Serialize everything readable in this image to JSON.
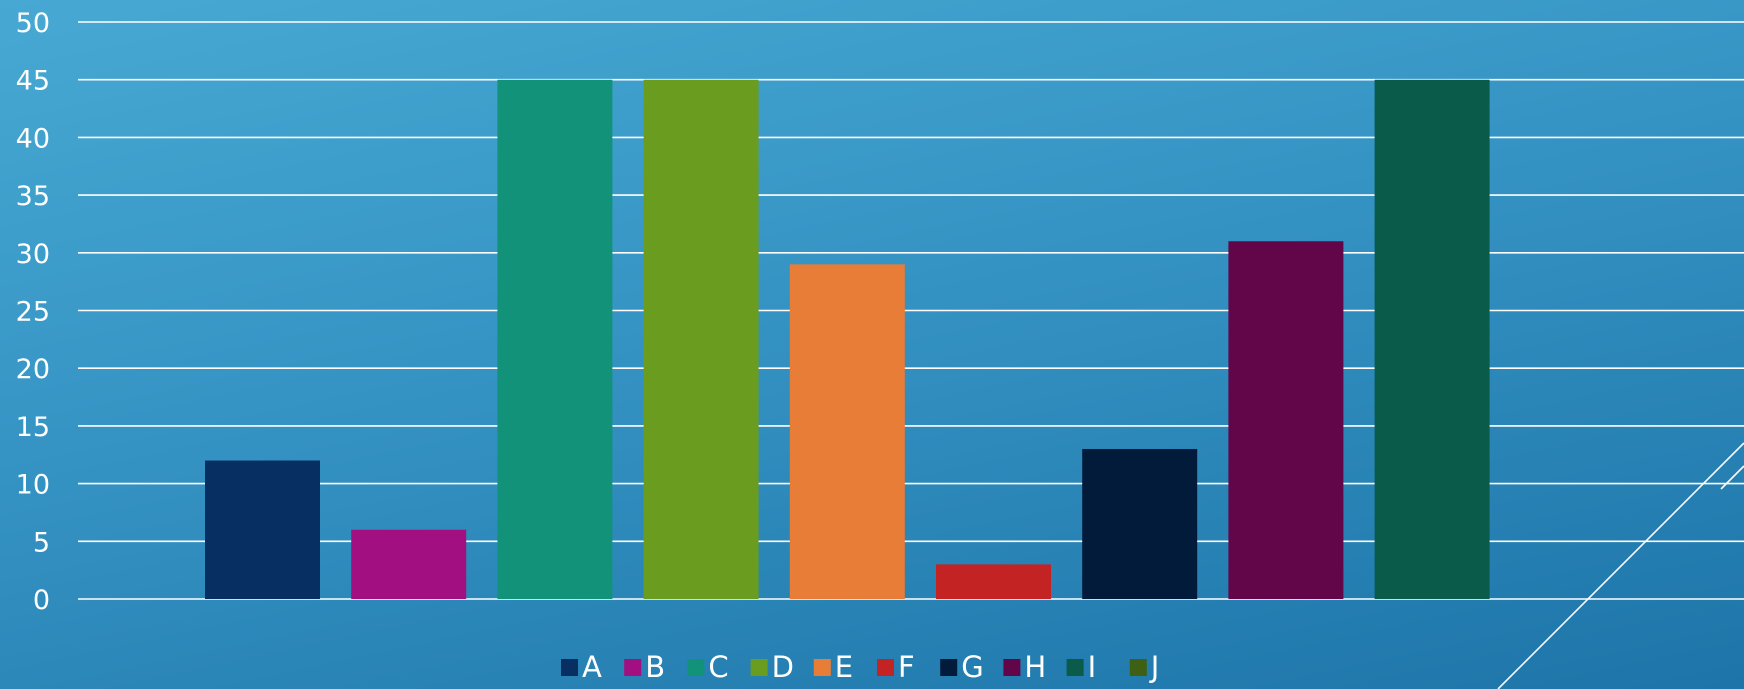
{
  "chart_data": {
    "type": "bar",
    "categories": [
      "A",
      "B",
      "C",
      "D",
      "E",
      "F",
      "G",
      "H",
      "I",
      "J"
    ],
    "values": [
      12,
      6,
      45,
      45,
      29,
      3,
      13,
      31,
      45,
      0
    ],
    "colors": [
      "#072f62",
      "#a20f80",
      "#13927a",
      "#6a9d1f",
      "#e87d38",
      "#c42323",
      "#021b3b",
      "#620649",
      "#0b5b4b",
      "#3e6014"
    ],
    "ylim": [
      0,
      50
    ],
    "yticks": [
      "0",
      "5",
      "10",
      "15",
      "20",
      "25",
      "30",
      "35",
      "40",
      "45",
      "50"
    ],
    "legend": {
      "position": "bottom",
      "entries": [
        "A",
        "B",
        "C",
        "D",
        "E",
        "F",
        "G",
        "H",
        "I",
        "J"
      ]
    },
    "grid": true
  },
  "theme": {
    "background_top": "#47a9d3",
    "background_bottom": "#1d74a8",
    "text_color": "#ffffff",
    "grid_color": "#ffffff"
  }
}
